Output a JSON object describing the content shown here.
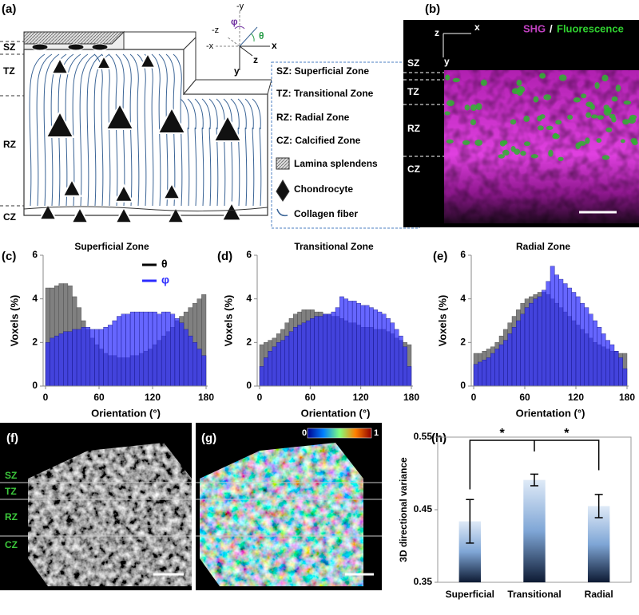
{
  "panel_labels": [
    "(a)",
    "(b)",
    "(c)",
    "(d)",
    "(e)",
    "(f)",
    "(g)",
    "(h)"
  ],
  "diagram": {
    "zones": [
      "SZ",
      "TZ",
      "RZ",
      "CZ"
    ],
    "axes": [
      "-y",
      "φ",
      "-z",
      "θ",
      "-x",
      "x",
      "z",
      "y"
    ],
    "legend": [
      "SZ: Superficial Zone",
      "TZ: Transitional Zone",
      "RZ: Radial Zone",
      "CZ: Calcified Zone",
      "Lamina splendens",
      "Chondrocyte",
      "Collagen fiber"
    ]
  },
  "image_b": {
    "axes": [
      "z",
      "x",
      "y"
    ],
    "channels": [
      "SHG",
      "/",
      "Fluorescence"
    ],
    "zones": [
      "SZ",
      "TZ",
      "RZ",
      "CZ"
    ]
  },
  "image_f": {
    "zones": [
      "SZ",
      "TZ",
      "RZ",
      "CZ"
    ]
  },
  "image_g": {
    "colorbar": [
      0,
      1
    ]
  },
  "chart_data": [
    {
      "type": "histogram",
      "title": "Superficial Zone",
      "xlabel": "Orientation (°)",
      "ylabel": "Voxels (%)",
      "bins": [
        0,
        5,
        10,
        15,
        20,
        25,
        30,
        35,
        40,
        45,
        50,
        55,
        60,
        65,
        70,
        75,
        80,
        85,
        90,
        95,
        100,
        105,
        110,
        115,
        120,
        125,
        130,
        135,
        140,
        145,
        150,
        155,
        160,
        165,
        170,
        175,
        180
      ],
      "series": [
        {
          "name": "θ",
          "color": "#808080",
          "values": [
            4.5,
            4.5,
            4.6,
            4.7,
            4.7,
            4.6,
            4.1,
            3.6,
            3.0,
            2.6,
            2.2,
            1.9,
            1.7,
            1.5,
            1.4,
            1.4,
            1.3,
            1.3,
            1.3,
            1.4,
            1.4,
            1.5,
            1.6,
            1.7,
            1.9,
            2.1,
            2.3,
            2.5,
            2.7,
            3.0,
            3.2,
            3.4,
            3.6,
            3.8,
            4.0,
            4.2
          ]
        },
        {
          "name": "φ",
          "color": "#2b2bff",
          "values": [
            2.0,
            2.2,
            2.3,
            2.4,
            2.5,
            2.5,
            2.6,
            2.6,
            2.7,
            2.7,
            2.6,
            2.6,
            2.6,
            2.7,
            2.8,
            3.0,
            3.2,
            3.3,
            3.3,
            3.4,
            3.4,
            3.4,
            3.4,
            3.4,
            3.4,
            3.3,
            3.4,
            3.4,
            3.3,
            3.1,
            2.9,
            2.6,
            2.3,
            2.0,
            1.7,
            1.4
          ]
        }
      ],
      "xlim": [
        0,
        180
      ],
      "xticks": [
        0,
        60,
        120,
        180
      ],
      "ylim": [
        0,
        6
      ],
      "yticks": [
        0,
        2,
        4,
        6
      ]
    },
    {
      "type": "histogram",
      "title": "Transitional Zone",
      "xlabel": "Orientation (°)",
      "ylabel": "Voxels (%)",
      "bins": [
        0,
        5,
        10,
        15,
        20,
        25,
        30,
        35,
        40,
        45,
        50,
        55,
        60,
        65,
        70,
        75,
        80,
        85,
        90,
        95,
        100,
        105,
        110,
        115,
        120,
        125,
        130,
        135,
        140,
        145,
        150,
        155,
        160,
        165,
        170,
        175,
        180
      ],
      "series": [
        {
          "color": "#808080",
          "values": [
            1.9,
            2.0,
            2.1,
            2.2,
            2.4,
            2.6,
            2.9,
            3.1,
            3.3,
            3.4,
            3.5,
            3.5,
            3.5,
            3.4,
            3.4,
            3.3,
            3.3,
            3.2,
            3.2,
            3.1,
            3.0,
            2.9,
            2.9,
            2.8,
            2.7,
            2.7,
            2.7,
            2.6,
            2.6,
            2.6,
            2.5,
            2.4,
            2.2,
            2.1,
            2.0,
            1.9
          ]
        },
        {
          "color": "#2b2bff",
          "values": [
            0.9,
            1.3,
            1.6,
            1.8,
            2.0,
            2.1,
            2.3,
            2.5,
            2.7,
            2.8,
            2.9,
            3.0,
            3.1,
            3.2,
            3.2,
            3.3,
            3.3,
            3.4,
            3.6,
            4.1,
            4.0,
            3.9,
            3.9,
            3.8,
            3.7,
            3.7,
            3.6,
            3.5,
            3.4,
            3.3,
            3.1,
            2.9,
            2.6,
            2.3,
            1.8,
            0.9
          ]
        }
      ],
      "xlim": [
        0,
        180
      ],
      "xticks": [
        0,
        60,
        120,
        180
      ],
      "ylim": [
        0,
        6
      ],
      "yticks": [
        0,
        2,
        4,
        6
      ]
    },
    {
      "type": "histogram",
      "title": "Radial Zone",
      "xlabel": "Orientation (°)",
      "ylabel": "Voxels (%)",
      "bins": [
        0,
        5,
        10,
        15,
        20,
        25,
        30,
        35,
        40,
        45,
        50,
        55,
        60,
        65,
        70,
        75,
        80,
        85,
        90,
        95,
        100,
        105,
        110,
        115,
        120,
        125,
        130,
        135,
        140,
        145,
        150,
        155,
        160,
        165,
        170,
        175,
        180
      ],
      "series": [
        {
          "color": "#808080",
          "values": [
            1.5,
            1.5,
            1.6,
            1.7,
            1.8,
            2.0,
            2.3,
            2.6,
            2.9,
            3.2,
            3.5,
            3.8,
            4.0,
            4.1,
            4.2,
            4.3,
            4.3,
            4.2,
            4.0,
            3.8,
            3.6,
            3.4,
            3.2,
            3.0,
            2.8,
            2.6,
            2.4,
            2.2,
            2.0,
            1.9,
            1.8,
            1.7,
            1.6,
            1.6,
            1.5,
            1.5
          ]
        },
        {
          "color": "#2b2bff",
          "values": [
            1.0,
            1.1,
            1.2,
            1.3,
            1.5,
            1.7,
            1.9,
            2.1,
            2.4,
            2.7,
            3.0,
            3.3,
            3.6,
            3.8,
            4.0,
            4.1,
            4.4,
            4.8,
            5.5,
            5.1,
            4.9,
            4.7,
            4.5,
            4.3,
            4.1,
            3.8,
            3.6,
            3.3,
            3.0,
            2.7,
            2.4,
            2.1,
            1.9,
            1.6,
            1.3,
            0.8
          ]
        }
      ],
      "xlim": [
        0,
        180
      ],
      "xticks": [
        0,
        60,
        120,
        180
      ],
      "ylim": [
        0,
        6
      ],
      "yticks": [
        0,
        2,
        4,
        6
      ]
    },
    {
      "type": "bar",
      "ylabel": "3D directional variance",
      "categories": [
        "Superficial",
        "Transitional",
        "Radial"
      ],
      "values": [
        0.434,
        0.491,
        0.455
      ],
      "errors": [
        0.03,
        0.008,
        0.016
      ],
      "annotations": [
        "*",
        "*"
      ],
      "ylim": [
        0.35,
        0.55
      ],
      "yticks": [
        0.35,
        0.45,
        0.55
      ]
    }
  ]
}
